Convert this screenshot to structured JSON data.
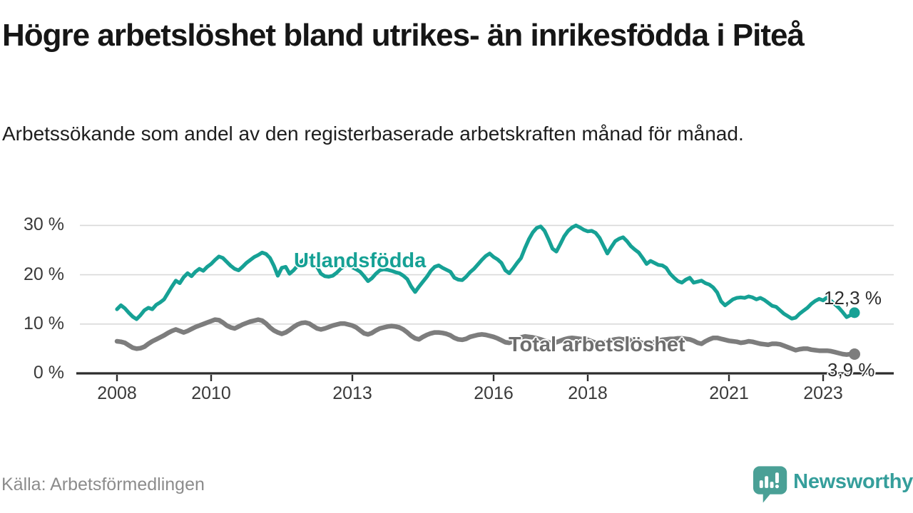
{
  "title": "Högre arbetslöshet bland utrikes- än inrikesfödda i Piteå",
  "subtitle": "Arbetssökande som andel av den registerbaserade arbetskraften månad för månad.",
  "source": "Källa: Arbetsförmedlingen",
  "logo": {
    "brand": "Newsworthy",
    "icon": "newsworthy-speech-bubble-bar-chart-icon",
    "bubble_color": "#4aa096",
    "text_color": "#359e9b"
  },
  "colors": {
    "accent_teal": "#16a195",
    "line_gray": "#7d7d7d",
    "grid": "#d9d9d9",
    "axis": "#2d2d2d",
    "tick_text": "#3a3a3a"
  },
  "chart_data": {
    "type": "line",
    "title": "Högre arbetslöshet bland utrikes- än inrikesfödda i Piteå",
    "xlabel": "",
    "ylabel": "",
    "x_unit": "months, monthly from Jan 2008 to Sep 2023",
    "x_start_year": 2008,
    "x_tick_years": [
      2008,
      2010,
      2013,
      2016,
      2018,
      2021,
      2023
    ],
    "y_ticks": [
      {
        "value": 30,
        "label": "30 %"
      },
      {
        "value": 20,
        "label": "20 %"
      },
      {
        "value": 10,
        "label": "10 %"
      },
      {
        "value": 0,
        "label": "0 %"
      }
    ],
    "ylim": [
      0,
      32
    ],
    "grid": "horizontal",
    "legend_position": "inline-labels",
    "series": [
      {
        "name": "Utlandsfödda",
        "color": "#16a195",
        "end_label": "12,3 %",
        "end_value": 12.3,
        "values": [
          13.0,
          13.8,
          13.2,
          12.3,
          11.5,
          11.0,
          11.8,
          12.8,
          13.3,
          13.0,
          13.9,
          14.4,
          15.0,
          16.3,
          17.6,
          18.8,
          18.3,
          19.5,
          20.3,
          19.7,
          20.6,
          21.2,
          20.8,
          21.6,
          22.2,
          23.0,
          23.7,
          23.4,
          22.6,
          21.8,
          21.2,
          20.9,
          21.6,
          22.4,
          23.0,
          23.6,
          24.0,
          24.5,
          24.2,
          23.4,
          21.8,
          19.8,
          21.4,
          21.6,
          20.2,
          20.9,
          21.8,
          22.7,
          23.3,
          22.6,
          21.9,
          21.6,
          20.2,
          19.7,
          19.6,
          19.8,
          20.4,
          21.2,
          21.8,
          22.3,
          21.5,
          21.1,
          20.6,
          19.7,
          18.7,
          19.3,
          20.2,
          20.9,
          21.1,
          21.0,
          20.8,
          20.5,
          20.3,
          19.8,
          19.1,
          17.6,
          16.5,
          17.6,
          18.6,
          19.6,
          20.8,
          21.6,
          21.9,
          21.4,
          21.0,
          20.6,
          19.4,
          19.0,
          18.9,
          19.6,
          20.5,
          21.2,
          22.1,
          23.0,
          23.8,
          24.3,
          23.6,
          23.1,
          22.4,
          20.9,
          20.3,
          21.3,
          22.4,
          23.4,
          25.4,
          27.2,
          28.6,
          29.5,
          29.8,
          28.9,
          27.2,
          25.3,
          24.7,
          26.2,
          27.8,
          28.9,
          29.6,
          30.0,
          29.6,
          29.1,
          28.8,
          28.9,
          28.5,
          27.5,
          25.9,
          24.3,
          25.6,
          26.8,
          27.3,
          27.6,
          26.8,
          25.8,
          25.1,
          24.5,
          23.4,
          22.2,
          22.8,
          22.4,
          22.0,
          21.9,
          21.4,
          20.2,
          19.4,
          18.7,
          18.4,
          19.0,
          19.4,
          18.4,
          18.6,
          18.8,
          18.3,
          18.0,
          17.4,
          16.4,
          14.6,
          13.8,
          14.4,
          15.0,
          15.3,
          15.4,
          15.3,
          15.6,
          15.4,
          15.0,
          15.3,
          14.9,
          14.3,
          13.7,
          13.5,
          12.8,
          12.1,
          11.6,
          11.1,
          11.3,
          12.1,
          12.7,
          13.3,
          14.1,
          14.7,
          15.1,
          14.8,
          15.4,
          14.7,
          14.0,
          13.3,
          12.4,
          11.4,
          11.8,
          12.3
        ]
      },
      {
        "name": "Total arbetslöshet",
        "color": "#7d7d7d",
        "end_label": "3,9 %",
        "end_value": 3.9,
        "values": [
          6.5,
          6.4,
          6.2,
          5.7,
          5.2,
          5.0,
          5.1,
          5.4,
          6.0,
          6.5,
          6.9,
          7.3,
          7.7,
          8.2,
          8.6,
          8.9,
          8.6,
          8.3,
          8.6,
          9.0,
          9.4,
          9.7,
          10.0,
          10.3,
          10.6,
          10.9,
          10.8,
          10.3,
          9.7,
          9.3,
          9.1,
          9.5,
          9.9,
          10.2,
          10.5,
          10.7,
          10.9,
          10.7,
          10.1,
          9.3,
          8.7,
          8.3,
          8.0,
          8.3,
          8.8,
          9.4,
          9.9,
          10.2,
          10.3,
          10.1,
          9.6,
          9.1,
          8.9,
          9.1,
          9.4,
          9.7,
          9.9,
          10.1,
          10.1,
          9.9,
          9.7,
          9.3,
          8.7,
          8.1,
          7.9,
          8.2,
          8.7,
          9.1,
          9.3,
          9.5,
          9.6,
          9.5,
          9.3,
          8.9,
          8.3,
          7.6,
          7.1,
          6.9,
          7.4,
          7.8,
          8.1,
          8.3,
          8.3,
          8.2,
          8.0,
          7.7,
          7.2,
          6.9,
          6.8,
          7.0,
          7.4,
          7.6,
          7.8,
          7.9,
          7.8,
          7.6,
          7.4,
          7.1,
          6.7,
          6.3,
          6.2,
          6.6,
          7.0,
          7.3,
          7.5,
          7.4,
          7.3,
          7.1,
          6.9,
          6.6,
          6.3,
          6.1,
          6.3,
          6.6,
          6.9,
          7.1,
          7.2,
          7.1,
          7.0,
          6.9,
          6.8,
          6.5,
          6.2,
          6.0,
          6.2,
          6.4,
          6.7,
          6.9,
          7.0,
          6.9,
          6.8,
          6.7,
          6.6,
          6.4,
          6.1,
          6.0,
          6.1,
          6.3,
          6.6,
          6.8,
          6.9,
          7.0,
          7.0,
          7.1,
          7.1,
          7.0,
          6.9,
          6.6,
          6.2,
          6.0,
          6.5,
          6.9,
          7.2,
          7.2,
          7.0,
          6.8,
          6.6,
          6.5,
          6.4,
          6.2,
          6.3,
          6.5,
          6.4,
          6.2,
          6.0,
          5.9,
          5.8,
          6.0,
          6.0,
          5.9,
          5.6,
          5.3,
          5.0,
          4.7,
          4.9,
          5.0,
          5.0,
          4.8,
          4.7,
          4.6,
          4.6,
          4.6,
          4.5,
          4.3,
          4.1,
          3.9,
          3.8,
          3.9,
          3.9
        ]
      }
    ]
  }
}
